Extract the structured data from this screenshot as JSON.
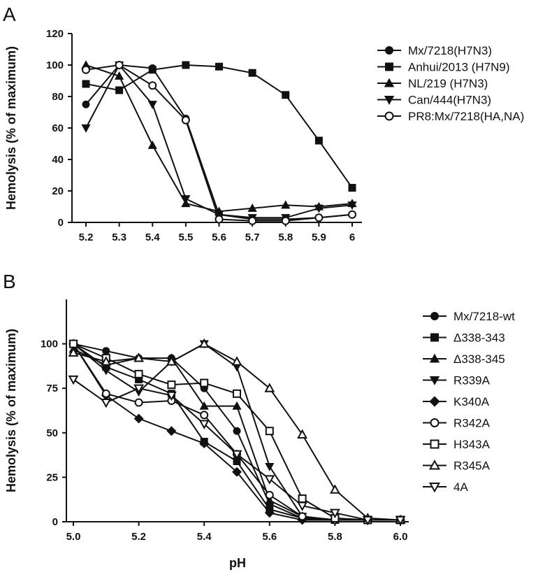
{
  "chart_data": [
    {
      "panel_label": "A",
      "type": "line",
      "ylabel": "Hemolysis (% of maximum)",
      "xlabel": "",
      "x_tick_labels": [
        "5.2",
        "5.3",
        "5.4",
        "5.5",
        "5.6",
        "5.7",
        "5.8",
        "5.9",
        "6"
      ],
      "x": [
        5.2,
        5.3,
        5.4,
        5.5,
        5.6,
        5.7,
        5.8,
        5.9,
        6.0
      ],
      "ylim": [
        0,
        120
      ],
      "yticks": [
        0,
        20,
        40,
        60,
        80,
        100,
        120
      ],
      "legend_position": "right",
      "series": [
        {
          "name": "Mx/7218(H7N3)",
          "marker": "circle",
          "values": [
            75,
            100,
            98,
            66,
            5,
            2,
            2,
            3,
            5
          ]
        },
        {
          "name": "Anhui/2013 (H7N9)",
          "marker": "square",
          "values": [
            88,
            84,
            97,
            100,
            99,
            95,
            81,
            52,
            22
          ]
        },
        {
          "name": "NL/219 (H7N3)",
          "marker": "triangle-up",
          "values": [
            100,
            93,
            49,
            12,
            7,
            9,
            11,
            10,
            12
          ]
        },
        {
          "name": "Can/444(H7N3)",
          "marker": "triangle-down",
          "values": [
            60,
            100,
            75,
            15,
            5,
            3,
            3,
            9,
            11
          ]
        },
        {
          "name": "PR8:Mx/7218(HA,NA)",
          "marker": "circle-open",
          "values": [
            97,
            100,
            87,
            65,
            2,
            1,
            1,
            3,
            5
          ]
        }
      ]
    },
    {
      "panel_label": "B",
      "type": "line",
      "ylabel": "Hemolysis (% of maximum)",
      "xlabel": "pH",
      "x_tick_labels": [
        "5.0",
        "5.2",
        "5.4",
        "5.6",
        "5.8",
        "6.0"
      ],
      "x": [
        5.0,
        5.1,
        5.2,
        5.3,
        5.4,
        5.5,
        5.6,
        5.7,
        5.8,
        5.9,
        6.0
      ],
      "ylim": [
        0,
        125
      ],
      "yticks": [
        0,
        25,
        50,
        75,
        100
      ],
      "legend_position": "right",
      "series": [
        {
          "name": "Mx/7218-wt",
          "marker": "circle",
          "values": [
            100,
            96,
            92,
            92,
            75,
            51,
            10,
            2,
            1,
            1,
            1
          ]
        },
        {
          "name": "Δ338-343",
          "marker": "square",
          "values": [
            100,
            87,
            80,
            72,
            45,
            34,
            7,
            2,
            1,
            1,
            1
          ]
        },
        {
          "name": "Δ338-345",
          "marker": "triangle-up",
          "values": [
            97,
            88,
            92,
            92,
            65,
            65,
            12,
            3,
            1,
            1,
            1
          ]
        },
        {
          "name": "R339A",
          "marker": "triangle-down",
          "values": [
            100,
            85,
            73,
            90,
            100,
            87,
            31,
            3,
            1,
            1,
            1
          ]
        },
        {
          "name": "K340A",
          "marker": "diamond",
          "values": [
            100,
            71,
            58,
            51,
            44,
            28,
            5,
            1,
            1,
            1,
            1
          ]
        },
        {
          "name": "R342A",
          "marker": "circle-open",
          "values": [
            100,
            72,
            67,
            68,
            60,
            38,
            15,
            3,
            1,
            1,
            1
          ]
        },
        {
          "name": "H343A",
          "marker": "square-open",
          "values": [
            100,
            92,
            83,
            77,
            78,
            72,
            51,
            13,
            2,
            1,
            1
          ]
        },
        {
          "name": "R345A",
          "marker": "triangle-up-open",
          "values": [
            95,
            90,
            92,
            90,
            100,
            90,
            75,
            49,
            18,
            2,
            1
          ]
        },
        {
          "name": "4A",
          "marker": "triangle-down-open",
          "values": [
            80,
            67,
            75,
            71,
            55,
            38,
            24,
            9,
            5,
            1,
            1
          ]
        }
      ]
    }
  ]
}
